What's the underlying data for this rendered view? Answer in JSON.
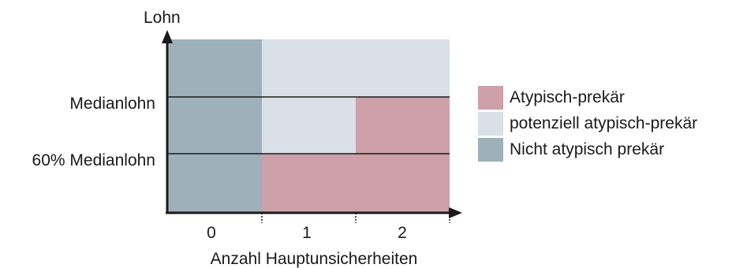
{
  "colors": {
    "nicht_prekaer": "#9eb0b9",
    "potenziell": "#d9e0e7",
    "atypisch": "#cda0aa",
    "line": "#1a1a1a"
  },
  "axes": {
    "y_label": "Lohn",
    "x_label": "Anzahl Hauptunsicherheiten",
    "x_ticks": [
      "0",
      "1",
      "2"
    ],
    "y_levels": [
      "Medianlohn",
      "60% Medianlohn"
    ]
  },
  "regions": [
    {
      "category": "nicht_prekaer",
      "unsicherheiten": "0",
      "lohn": "alle"
    },
    {
      "category": "potenziell",
      "unsicherheiten": "1–2",
      "lohn": "über Medianlohn"
    },
    {
      "category": "potenziell",
      "unsicherheiten": "1",
      "lohn": "60% Medianlohn bis Medianlohn"
    },
    {
      "category": "atypisch",
      "unsicherheiten": "2",
      "lohn": "60% Medianlohn bis Medianlohn"
    },
    {
      "category": "atypisch",
      "unsicherheiten": "1–2",
      "lohn": "unter 60% Medianlohn"
    }
  ],
  "legend": [
    {
      "label": "Atypisch-prekär",
      "color_key": "atypisch"
    },
    {
      "label": "potenziell atypisch-prekär",
      "color_key": "potenziell"
    },
    {
      "label": "Nicht atypisch prekär",
      "color_key": "nicht_prekaer"
    }
  ]
}
